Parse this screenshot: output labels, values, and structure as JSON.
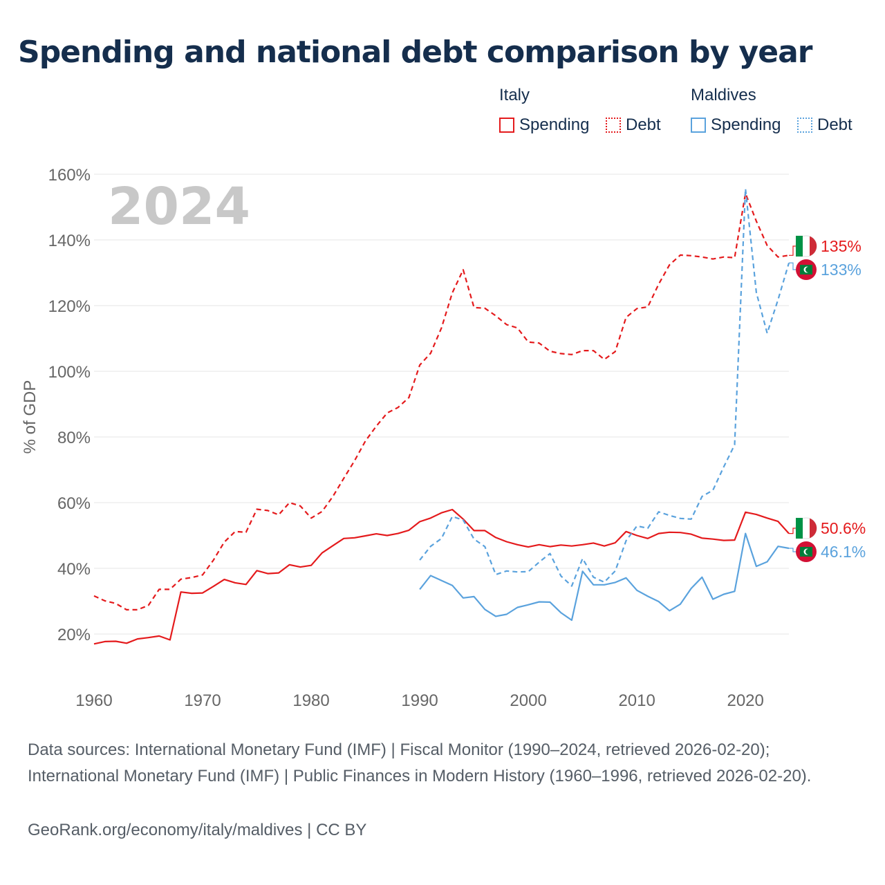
{
  "title": "Spending and national debt comparison by year",
  "legend": {
    "groups": [
      {
        "country": "Italy",
        "items": [
          "Spending",
          "Debt"
        ]
      },
      {
        "country": "Maldives",
        "items": [
          "Spending",
          "Debt"
        ]
      }
    ]
  },
  "colors": {
    "italy": "#e41a1c",
    "maldives": "#5aa2dd",
    "grid": "#e6e6e6",
    "axis_text": "#666666",
    "title": "#152e4d",
    "year_watermark": "#c8c8c8"
  },
  "footer": {
    "sources": "Data sources: International Monetary Fund (IMF) | Fiscal Monitor (1990–2024, retrieved 2026-02-20); International Monetary Fund (IMF) | Public Finances in Modern History (1960–1996, retrieved 2026-02-20).",
    "credit": "GeoRank.org/economy/italy/maldives | CC BY"
  },
  "chart_data": {
    "type": "line",
    "title": "Spending and national debt comparison by year",
    "year_label": "2024",
    "xlabel": "",
    "ylabel": "% of GDP",
    "xlim": [
      1960,
      2024
    ],
    "ylim": [
      10,
      165
    ],
    "x_ticks": [
      1960,
      1970,
      1980,
      1990,
      2000,
      2010,
      2020
    ],
    "y_ticks": [
      20,
      40,
      60,
      80,
      100,
      120,
      140,
      160
    ],
    "y_tick_labels": [
      "20%",
      "40%",
      "60%",
      "80%",
      "100%",
      "120%",
      "140%",
      "160%"
    ],
    "grid": true,
    "legend_position": "top-right",
    "series": [
      {
        "name": "Italy Spending",
        "country": "Italy",
        "measure": "Spending",
        "color": "#e41a1c",
        "style": "solid",
        "x": [
          1960,
          1961,
          1962,
          1963,
          1964,
          1965,
          1966,
          1967,
          1968,
          1969,
          1970,
          1971,
          1972,
          1973,
          1974,
          1975,
          1976,
          1977,
          1978,
          1979,
          1980,
          1981,
          1982,
          1983,
          1984,
          1985,
          1986,
          1987,
          1988,
          1989,
          1990,
          1991,
          1992,
          1993,
          1994,
          1995,
          1996,
          1997,
          1998,
          1999,
          2000,
          2001,
          2002,
          2003,
          2004,
          2005,
          2006,
          2007,
          2008,
          2009,
          2010,
          2011,
          2012,
          2013,
          2014,
          2015,
          2016,
          2017,
          2018,
          2019,
          2020,
          2021,
          2022,
          2023,
          2024
        ],
        "values": [
          17.0,
          17.7,
          17.8,
          17.2,
          18.5,
          18.9,
          19.4,
          18.2,
          32.8,
          32.4,
          32.5,
          34.5,
          36.6,
          35.6,
          35.1,
          39.3,
          38.4,
          38.6,
          41.1,
          40.4,
          40.9,
          44.7,
          46.9,
          49.1,
          49.3,
          49.9,
          50.5,
          50.0,
          50.6,
          51.6,
          54.2,
          55.3,
          56.9,
          57.9,
          55.0,
          51.5,
          51.5,
          49.4,
          48.1,
          47.2,
          46.5,
          47.2,
          46.6,
          47.1,
          46.8,
          47.2,
          47.7,
          46.8,
          47.8,
          51.2,
          50.0,
          49.1,
          50.6,
          51.0,
          50.9,
          50.4,
          49.2,
          48.9,
          48.5,
          48.6,
          57.1,
          56.4,
          55.3,
          54.3,
          50.6
        ],
        "end_label": "50.6%"
      },
      {
        "name": "Italy Debt",
        "country": "Italy",
        "measure": "Debt",
        "color": "#e41a1c",
        "style": "dashed",
        "x": [
          1960,
          1961,
          1962,
          1963,
          1964,
          1965,
          1966,
          1967,
          1968,
          1969,
          1970,
          1971,
          1972,
          1973,
          1974,
          1975,
          1976,
          1977,
          1978,
          1979,
          1980,
          1981,
          1982,
          1983,
          1984,
          1985,
          1986,
          1987,
          1988,
          1989,
          1990,
          1991,
          1992,
          1993,
          1994,
          1995,
          1996,
          1997,
          1998,
          1999,
          2000,
          2001,
          2002,
          2003,
          2004,
          2005,
          2006,
          2007,
          2008,
          2009,
          2010,
          2011,
          2012,
          2013,
          2014,
          2015,
          2016,
          2017,
          2018,
          2019,
          2020,
          2021,
          2022,
          2023,
          2024
        ],
        "values": [
          31.6,
          30.1,
          29.3,
          27.4,
          27.4,
          28.7,
          33.6,
          33.6,
          36.7,
          37.2,
          38.0,
          42.5,
          48.0,
          51.2,
          51.0,
          58.0,
          57.6,
          56.3,
          60.0,
          59.0,
          55.3,
          57.3,
          61.9,
          67.4,
          72.8,
          78.8,
          83.3,
          87.3,
          89.0,
          92.0,
          101.9,
          105.5,
          113.2,
          123.9,
          130.9,
          119.4,
          119.2,
          116.9,
          114.2,
          113.2,
          108.9,
          108.6,
          106.1,
          105.4,
          105.1,
          106.3,
          106.3,
          103.6,
          106.0,
          116.4,
          119.1,
          119.6,
          126.5,
          132.4,
          135.4,
          135.2,
          134.8,
          134.2,
          134.8,
          134.6,
          154.2,
          145.7,
          138.3,
          134.8,
          135.3
        ],
        "end_label": "135%"
      },
      {
        "name": "Maldives Spending",
        "country": "Maldives",
        "measure": "Spending",
        "color": "#5aa2dd",
        "style": "solid",
        "x": [
          1990,
          1991,
          1992,
          1993,
          1994,
          1995,
          1996,
          1997,
          1998,
          1999,
          2000,
          2001,
          2002,
          2003,
          2004,
          2005,
          2006,
          2007,
          2008,
          2009,
          2010,
          2011,
          2012,
          2013,
          2014,
          2015,
          2016,
          2017,
          2018,
          2019,
          2020,
          2021,
          2022,
          2023,
          2024
        ],
        "values": [
          33.6,
          37.8,
          36.3,
          34.8,
          31.0,
          31.4,
          27.5,
          25.4,
          26.0,
          28.1,
          28.9,
          29.8,
          29.7,
          26.5,
          24.2,
          39.1,
          35.0,
          35.0,
          35.7,
          37.1,
          33.3,
          31.5,
          29.9,
          27.1,
          29.1,
          33.9,
          37.3,
          30.6,
          32.1,
          33.0,
          50.6,
          40.6,
          42.0,
          46.7,
          46.1
        ],
        "end_label": "46.1%"
      },
      {
        "name": "Maldives Debt",
        "country": "Maldives",
        "measure": "Debt",
        "color": "#5aa2dd",
        "style": "dashed",
        "x": [
          1990,
          1991,
          1992,
          1993,
          1994,
          1995,
          1996,
          1997,
          1998,
          1999,
          2000,
          2001,
          2002,
          2003,
          2004,
          2005,
          2006,
          2007,
          2008,
          2009,
          2010,
          2011,
          2012,
          2013,
          2014,
          2015,
          2016,
          2017,
          2018,
          2019,
          2020,
          2021,
          2022,
          2023,
          2024
        ],
        "values": [
          42.5,
          46.7,
          49.1,
          55.8,
          54.7,
          48.9,
          46.6,
          38.1,
          39.2,
          38.9,
          39.0,
          41.9,
          44.5,
          37.7,
          34.6,
          43.0,
          37.3,
          35.8,
          39.2,
          48.4,
          52.9,
          52.2,
          57.2,
          56.1,
          55.2,
          55.0,
          61.9,
          63.8,
          70.9,
          77.6,
          155.6,
          124.0,
          111.6,
          121.8,
          133.0
        ],
        "end_label": "133%"
      }
    ]
  }
}
